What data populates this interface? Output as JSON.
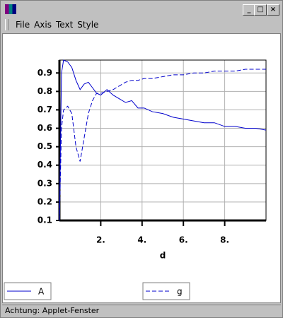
{
  "menu": [
    "File",
    "Axis",
    "Text",
    "Style"
  ],
  "status": "Achtung: Applet-Fenster",
  "chart_data": {
    "type": "line",
    "x_label": "d",
    "x": [
      0,
      0.1,
      0.2,
      0.4,
      0.6,
      0.8,
      1.0,
      1.2,
      1.4,
      1.6,
      1.8,
      2.0,
      2.3,
      2.6,
      2.9,
      3.2,
      3.5,
      3.8,
      4.1,
      4.5,
      5,
      5.5,
      6,
      6.5,
      7,
      7.5,
      8,
      8.5,
      9,
      9.5,
      10
    ],
    "series": [
      {
        "name": "A",
        "color": "#0000cc",
        "dash": false,
        "values": [
          0.1,
          0.9,
          0.97,
          0.96,
          0.93,
          0.86,
          0.81,
          0.84,
          0.85,
          0.82,
          0.79,
          0.78,
          0.81,
          0.78,
          0.76,
          0.74,
          0.75,
          0.71,
          0.71,
          0.69,
          0.68,
          0.66,
          0.65,
          0.64,
          0.63,
          0.63,
          0.61,
          0.61,
          0.6,
          0.6,
          0.59
        ]
      },
      {
        "name": "g",
        "color": "#0000cc",
        "dash": true,
        "values": [
          0.1,
          0.6,
          0.7,
          0.72,
          0.68,
          0.5,
          0.42,
          0.55,
          0.68,
          0.75,
          0.79,
          0.79,
          0.8,
          0.81,
          0.83,
          0.85,
          0.86,
          0.86,
          0.87,
          0.87,
          0.88,
          0.89,
          0.89,
          0.9,
          0.9,
          0.91,
          0.91,
          0.91,
          0.92,
          0.92,
          0.92
        ]
      }
    ],
    "xlim": [
      0,
      10
    ],
    "xticks": [
      {
        "value": 2,
        "label": "2."
      },
      {
        "value": 4,
        "label": "4."
      },
      {
        "value": 6,
        "label": "6."
      },
      {
        "value": 8,
        "label": "8."
      }
    ],
    "ylim": [
      0.1,
      0.97
    ],
    "yticks": [
      0.1,
      0.2,
      0.3,
      0.4,
      0.5,
      0.6,
      0.7,
      0.8,
      0.9
    ],
    "grid": true
  }
}
